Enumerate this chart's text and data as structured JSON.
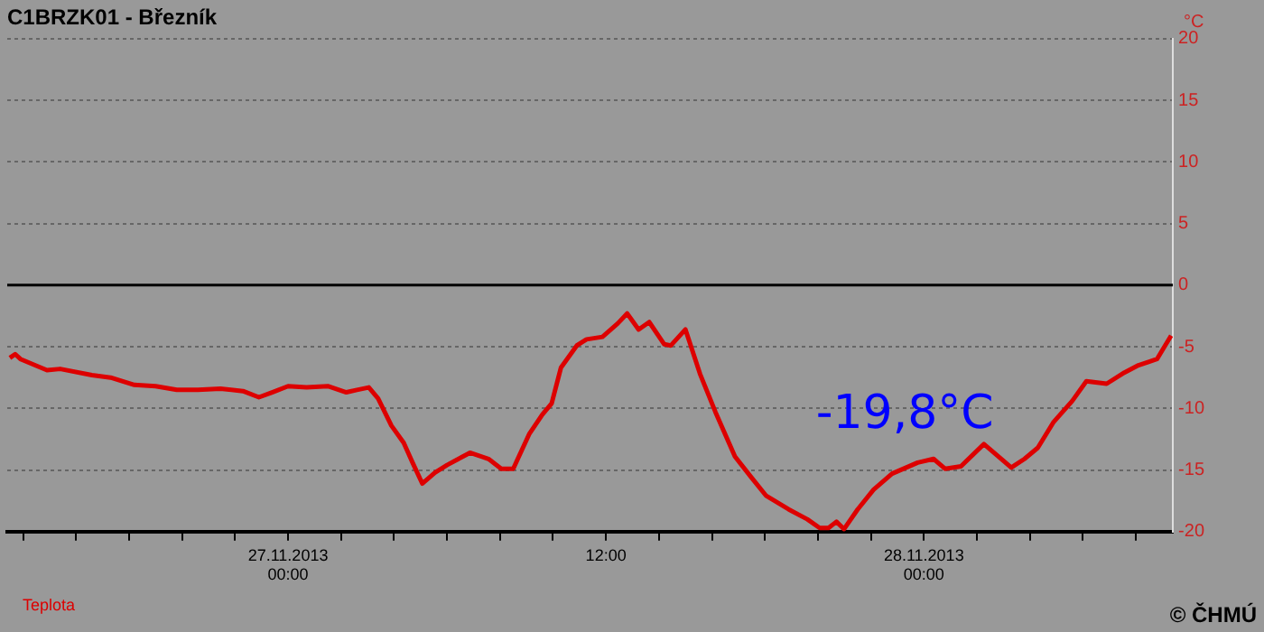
{
  "chart_data": {
    "type": "line",
    "title": "C1BRZK01 - Březník",
    "ylabel": "°C",
    "x": [
      "2013-11-26T13:30",
      "2013-11-26T13:42",
      "2013-11-26T13:54",
      "2013-11-26T14:54",
      "2013-11-26T15:24",
      "2013-11-26T16:36",
      "2013-11-26T17:18",
      "2013-11-26T18:12",
      "2013-11-26T19:00",
      "2013-11-26T19:48",
      "2013-11-26T20:36",
      "2013-11-26T21:27",
      "2013-11-26T22:18",
      "2013-11-26T22:54",
      "2013-11-26T23:24",
      "2013-11-27T00:00",
      "2013-11-27T00:42",
      "2013-11-27T01:30",
      "2013-11-27T02:12",
      "2013-11-27T02:36",
      "2013-11-27T03:03",
      "2013-11-27T03:24",
      "2013-11-27T03:54",
      "2013-11-27T04:22",
      "2013-11-27T04:42",
      "2013-11-27T05:04",
      "2013-11-27T05:33",
      "2013-11-27T06:00",
      "2013-11-27T06:52",
      "2013-11-27T07:34",
      "2013-11-27T08:03",
      "2013-11-27T08:30",
      "2013-11-27T09:06",
      "2013-11-27T09:36",
      "2013-11-27T09:57",
      "2013-11-27T10:18",
      "2013-11-27T10:54",
      "2013-11-27T11:16",
      "2013-11-27T11:52",
      "2013-11-27T12:27",
      "2013-11-27T12:48",
      "2013-11-27T13:14",
      "2013-11-27T13:38",
      "2013-11-27T14:12",
      "2013-11-27T14:27",
      "2013-11-27T15:00",
      "2013-11-27T15:33",
      "2013-11-27T16:08",
      "2013-11-27T16:52",
      "2013-11-27T17:27",
      "2013-11-27T18:03",
      "2013-11-27T18:54",
      "2013-11-27T19:36",
      "2013-11-27T20:04",
      "2013-11-27T20:24",
      "2013-11-27T20:42",
      "2013-11-27T20:59",
      "2013-11-27T21:30",
      "2013-11-27T22:06",
      "2013-11-27T22:48",
      "2013-11-27T23:46",
      "2013-11-28T00:22",
      "2013-11-28T00:48",
      "2013-11-28T01:24",
      "2013-11-28T02:16",
      "2013-11-28T03:18",
      "2013-11-28T03:48",
      "2013-11-28T04:18",
      "2013-11-28T04:54",
      "2013-11-28T05:36",
      "2013-11-28T06:08",
      "2013-11-28T06:54",
      "2013-11-28T07:34",
      "2013-11-28T08:06",
      "2013-11-28T08:48",
      "2013-11-28T09:03",
      "2013-11-28T09:20"
    ],
    "series": [
      {
        "name": "Teplota",
        "color": "#dd0000",
        "values": [
          -5.9,
          -5.6,
          -6.0,
          -6.9,
          -6.8,
          -7.3,
          -7.5,
          -8.1,
          -8.2,
          -8.5,
          -8.5,
          -8.4,
          -8.6,
          -9.1,
          -8.7,
          -8.2,
          -8.3,
          -8.2,
          -8.7,
          -8.5,
          -8.3,
          -9.2,
          -11.4,
          -12.8,
          -14.4,
          -16.1,
          -15.2,
          -14.6,
          -13.6,
          -14.1,
          -14.9,
          -14.9,
          -12.1,
          -10.5,
          -9.6,
          -6.7,
          -4.9,
          -4.4,
          -4.2,
          -3.1,
          -2.3,
          -3.6,
          -3.0,
          -4.8,
          -4.9,
          -3.6,
          -7.2,
          -10.3,
          -13.9,
          -15.5,
          -17.1,
          -18.2,
          -19.0,
          -19.7,
          -19.7,
          -19.2,
          -19.8,
          -18.2,
          -16.6,
          -15.3,
          -14.4,
          -14.1,
          -14.9,
          -14.7,
          -12.9,
          -14.8,
          -14.1,
          -13.2,
          -11.1,
          -9.4,
          -7.8,
          -8.0,
          -7.1,
          -6.5,
          -6.0,
          -5.1,
          -4.1
        ]
      }
    ],
    "xlim": [
      "2013-11-26T13:24",
      "2013-11-28T09:24"
    ],
    "xticks": [
      {
        "value": "2013-11-26T14:00",
        "label": null
      },
      {
        "value": "2013-11-26T16:00",
        "label": null
      },
      {
        "value": "2013-11-26T18:00",
        "label": null
      },
      {
        "value": "2013-11-26T20:00",
        "label": null
      },
      {
        "value": "2013-11-26T22:00",
        "label": null
      },
      {
        "value": "2013-11-27T00:00",
        "label": "27.11.2013 00:00"
      },
      {
        "value": "2013-11-27T02:00",
        "label": null
      },
      {
        "value": "2013-11-27T04:00",
        "label": null
      },
      {
        "value": "2013-11-27T06:00",
        "label": null
      },
      {
        "value": "2013-11-27T08:00",
        "label": null
      },
      {
        "value": "2013-11-27T10:00",
        "label": null
      },
      {
        "value": "2013-11-27T12:00",
        "label": "12:00"
      },
      {
        "value": "2013-11-27T14:00",
        "label": null
      },
      {
        "value": "2013-11-27T16:00",
        "label": null
      },
      {
        "value": "2013-11-27T18:00",
        "label": null
      },
      {
        "value": "2013-11-27T20:00",
        "label": null
      },
      {
        "value": "2013-11-27T22:00",
        "label": null
      },
      {
        "value": "2013-11-28T00:00",
        "label": "28.11.2013 00:00"
      },
      {
        "value": "2013-11-28T02:00",
        "label": null
      },
      {
        "value": "2013-11-28T04:00",
        "label": null
      },
      {
        "value": "2013-11-28T06:00",
        "label": null
      },
      {
        "value": "2013-11-28T08:00",
        "label": null
      }
    ],
    "ylim": [
      -20,
      20
    ],
    "yticks": [
      -20,
      -15,
      -10,
      -5,
      0,
      5,
      10,
      15,
      20
    ],
    "ref_lines": [
      {
        "axis": "y",
        "value": 0,
        "color": "#000000"
      }
    ],
    "annotations": [
      "-19,8°C",
      "© ČHMÚ"
    ],
    "grid": "y",
    "legend": "bottom left",
    "marker": "none",
    "line_style": "solid"
  }
}
